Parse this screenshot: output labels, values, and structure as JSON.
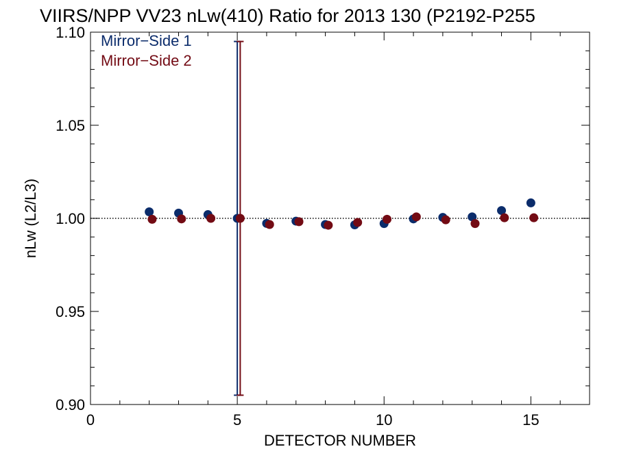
{
  "chart_data": {
    "type": "scatter",
    "title": "VIIRS/NPP VV23 nLw(410) Ratio for 2013 130 (P2192-P255",
    "xlabel": "DETECTOR NUMBER",
    "ylabel": "nLw (L2/L3)",
    "xlim": [
      0,
      17
    ],
    "ylim": [
      0.9,
      1.1
    ],
    "xticks": [
      0,
      5,
      10,
      15
    ],
    "xtick_labels": [
      "0",
      "5",
      "10",
      "15"
    ],
    "yticks": [
      0.9,
      0.95,
      1.0,
      1.05,
      1.1
    ],
    "ytick_labels": [
      "0.90",
      "0.95",
      "1.00",
      "1.05",
      "1.10"
    ],
    "reference_line": 1.0,
    "legend_position": "top-left",
    "grid": false,
    "series": [
      {
        "name": "Mirror−Side 1",
        "color": "#0b2c6b",
        "x": [
          2,
          3,
          4,
          5,
          6,
          7,
          8,
          9,
          10,
          11,
          12,
          13,
          14,
          15
        ],
        "y": [
          1.0035,
          1.0028,
          1.002,
          1.0,
          0.9973,
          0.9985,
          0.9967,
          0.9965,
          0.9972,
          0.9997,
          1.0005,
          1.0008,
          1.0042,
          1.0083
        ],
        "error_bar": {
          "x": 5,
          "low": 0.905,
          "high": 1.095
        }
      },
      {
        "name": "Mirror−Side 2",
        "color": "#730b14",
        "x": [
          2.1,
          3.1,
          4.1,
          5.1,
          6.1,
          7.1,
          8.1,
          9.1,
          10.1,
          11.1,
          12.1,
          13.1,
          14.1,
          15.1
        ],
        "y": [
          0.9995,
          0.9997,
          1.0,
          1.0,
          0.9967,
          0.9982,
          0.9963,
          0.9978,
          0.9995,
          1.0008,
          0.9992,
          0.9972,
          1.0003,
          1.0003
        ],
        "error_bar": {
          "x": 5.1,
          "low": 0.905,
          "high": 1.095
        }
      }
    ]
  }
}
